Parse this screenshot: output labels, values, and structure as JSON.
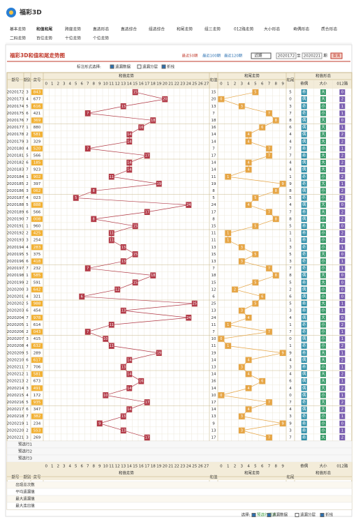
{
  "header": {
    "logo": "福彩3D"
  },
  "nav": [
    "基本走势",
    "和值和尾",
    "跨度走势",
    "直选形态",
    "直选综合",
    "组选综合",
    "和尾走势",
    "组三走势",
    "012路走势",
    "大小形态",
    "奇偶形态",
    "质合形态",
    "二码走势",
    "百位走势",
    "十位走势",
    "个位走势"
  ],
  "panel": {
    "title": "福彩3D和值和尾走势图",
    "recent": [
      "最近50期",
      "最近100期",
      "最近120期"
    ],
    "select": "近期",
    "from": "2020172",
    "to_label": "至",
    "to": "2020221",
    "end_label": "期",
    "query": "查询",
    "mark_label": "标注形式选择:",
    "options": [
      "遗漏数据",
      "遗漏分层",
      "折线"
    ]
  },
  "table": {
    "headers": {
      "period": "期号",
      "week": "期别",
      "draw": "奖号",
      "sum_group": "和值走势",
      "sum": "和值",
      "tail_group": "和尾走势",
      "tail": "和尾",
      "shape_group": "和值形态",
      "shape": [
        "奇偶",
        "大小",
        "012路"
      ]
    },
    "sum_cols": [
      0,
      1,
      2,
      3,
      4,
      5,
      6,
      7,
      8,
      9,
      10,
      11,
      12,
      13,
      14,
      15,
      16,
      17,
      18,
      19,
      20,
      21,
      22,
      23,
      24,
      25,
      26,
      27
    ],
    "tail_cols": [
      0,
      1,
      2,
      3,
      4,
      5,
      6,
      7,
      8,
      9
    ],
    "rows": [
      [
        "2020172",
        3,
        "843",
        15,
        5,
        "奇",
        "大",
        0
      ],
      [
        "2020173",
        4,
        "677",
        20,
        0,
        "偶",
        "大",
        2
      ],
      [
        "2020174",
        5,
        "616",
        13,
        3,
        "奇",
        "小",
        1
      ],
      [
        "2020175",
        6,
        "421",
        7,
        7,
        "奇",
        "小",
        1
      ],
      [
        "2020176",
        7,
        "369",
        18,
        8,
        "偶",
        "大",
        0
      ],
      [
        "2020177",
        1,
        "880",
        16,
        6,
        "偶",
        "大",
        1
      ],
      [
        "2020178",
        2,
        "581",
        14,
        4,
        "偶",
        "大",
        2
      ],
      [
        "2020179",
        3,
        "329",
        14,
        4,
        "偶",
        "大",
        2
      ],
      [
        "2020180",
        4,
        "520",
        7,
        7,
        "奇",
        "小",
        1
      ],
      [
        "2020181",
        5,
        "566",
        17,
        7,
        "奇",
        "大",
        2
      ],
      [
        "2020182",
        6,
        "185",
        14,
        4,
        "偶",
        "大",
        2
      ],
      [
        "2020183",
        7,
        "923",
        14,
        4,
        "偶",
        "大",
        2
      ],
      [
        "2020184",
        1,
        "902",
        11,
        1,
        "奇",
        "小",
        2
      ],
      [
        "2020185",
        2,
        "397",
        19,
        9,
        "奇",
        "大",
        1
      ],
      [
        "2020186",
        3,
        "062",
        8,
        8,
        "偶",
        "小",
        2
      ],
      [
        "2020187",
        4,
        "023",
        5,
        5,
        "奇",
        "小",
        2
      ],
      [
        "2020188",
        5,
        "888",
        24,
        4,
        "偶",
        "大",
        0
      ],
      [
        "2020189",
        6,
        "566",
        17,
        7,
        "奇",
        "大",
        2
      ],
      [
        "2020190",
        7,
        "008",
        8,
        8,
        "偶",
        "小",
        2
      ],
      [
        "2020191",
        1,
        "960",
        15,
        5,
        "奇",
        "大",
        0
      ],
      [
        "2020192",
        2,
        "425",
        11,
        1,
        "奇",
        "小",
        2
      ],
      [
        "2020193",
        3,
        "254",
        11,
        1,
        "奇",
        "小",
        2
      ],
      [
        "2020194",
        4,
        "283",
        13,
        3,
        "奇",
        "小",
        1
      ],
      [
        "2020195",
        5,
        "375",
        15,
        5,
        "奇",
        "大",
        0
      ],
      [
        "2020196",
        6,
        "418",
        13,
        3,
        "奇",
        "小",
        1
      ],
      [
        "2020197",
        7,
        "232",
        7,
        7,
        "奇",
        "小",
        1
      ],
      [
        "2020198",
        1,
        "585",
        18,
        8,
        "偶",
        "大",
        0
      ],
      [
        "2020199",
        2,
        "591",
        15,
        5,
        "奇",
        "大",
        0
      ],
      [
        "2020200",
        3,
        "642",
        12,
        2,
        "偶",
        "小",
        0
      ],
      [
        "2020201",
        4,
        "321",
        6,
        6,
        "偶",
        "小",
        0
      ],
      [
        "2020202",
        5,
        "988",
        25,
        5,
        "奇",
        "大",
        1
      ],
      [
        "2020203",
        6,
        "454",
        13,
        3,
        "奇",
        "小",
        1
      ],
      [
        "2020204",
        7,
        "978",
        24,
        4,
        "偶",
        "大",
        0
      ],
      [
        "2020205",
        1,
        "614",
        11,
        1,
        "奇",
        "小",
        2
      ],
      [
        "2020206",
        2,
        "043",
        7,
        7,
        "奇",
        "小",
        1
      ],
      [
        "2020207",
        3,
        "415",
        10,
        0,
        "偶",
        "小",
        1
      ],
      [
        "2020208",
        4,
        "632",
        11,
        1,
        "奇",
        "小",
        2
      ],
      [
        "2020209",
        5,
        "289",
        19,
        9,
        "奇",
        "大",
        1
      ],
      [
        "2020210",
        6,
        "617",
        14,
        4,
        "偶",
        "大",
        2
      ],
      [
        "2020211",
        7,
        "706",
        13,
        3,
        "奇",
        "小",
        1
      ],
      [
        "2020212",
        1,
        "581",
        14,
        4,
        "偶",
        "大",
        2
      ],
      [
        "2020213",
        2,
        "673",
        16,
        6,
        "偶",
        "大",
        1
      ],
      [
        "2020214",
        3,
        "491",
        14,
        4,
        "偶",
        "大",
        2
      ],
      [
        "2020215",
        4,
        "172",
        10,
        0,
        "偶",
        "小",
        1
      ],
      [
        "2020216",
        5,
        "935",
        17,
        7,
        "奇",
        "大",
        2
      ],
      [
        "2020217",
        6,
        "347",
        14,
        4,
        "偶",
        "大",
        2
      ],
      [
        "2020218",
        7,
        "382",
        13,
        3,
        "奇",
        "小",
        1
      ],
      [
        "2020219",
        1,
        "234",
        9,
        9,
        "奇",
        "小",
        0
      ],
      [
        "2020220",
        2,
        "553",
        13,
        3,
        "奇",
        "小",
        1
      ],
      [
        "2020221",
        3,
        "269",
        17,
        7,
        "奇",
        "大",
        2
      ]
    ],
    "preview": [
      "预选行1",
      "预选行2",
      "预选行3"
    ],
    "stats": [
      "出现总次数",
      "平均遗漏值",
      "最大遗漏值",
      "最大连出值"
    ]
  },
  "footer": {
    "label": "选择:",
    "options": [
      "预选行提示",
      "遗漏数据",
      "遗漏分层",
      "折线"
    ]
  }
}
